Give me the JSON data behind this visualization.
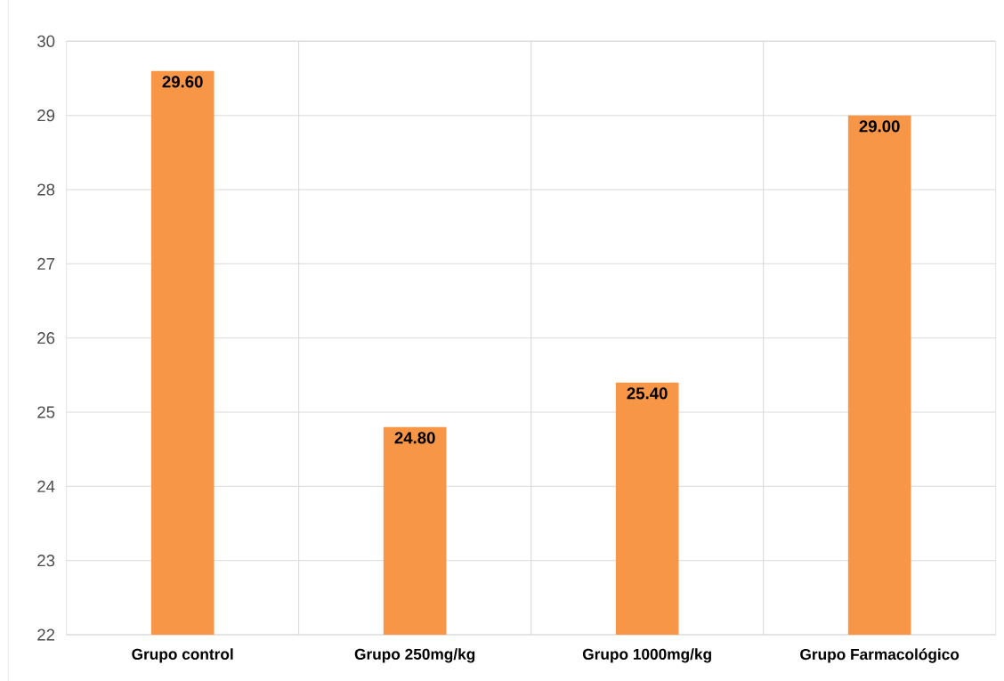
{
  "chart_data": {
    "type": "bar",
    "categories": [
      "Grupo control",
      "Grupo 250mg/kg",
      "Grupo 1000mg/kg",
      "Grupo Farmacológico"
    ],
    "values": [
      29.6,
      24.8,
      25.4,
      29.0
    ],
    "value_labels": [
      "29.60",
      "24.80",
      "25.40",
      "29.00"
    ],
    "color": "#f79646",
    "ylim": [
      22,
      30
    ],
    "yticks": [
      22,
      23,
      24,
      25,
      26,
      27,
      28,
      29,
      30
    ],
    "grid": true
  }
}
